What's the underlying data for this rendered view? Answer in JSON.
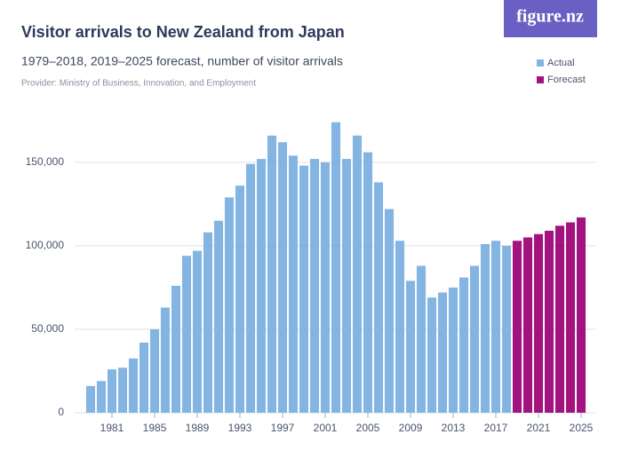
{
  "logo": "figure.nz",
  "chart_data": {
    "type": "bar",
    "title": "Visitor arrivals to New Zealand from Japan",
    "subtitle": "1979–2018, 2019–2025 forecast, number of visitor arrivals",
    "source": "Provider: Ministry of Business, Innovation, and Employment",
    "categories": [
      null,
      null,
      "1981",
      null,
      null,
      null,
      "1985",
      null,
      null,
      null,
      "1989",
      null,
      null,
      null,
      "1993",
      null,
      null,
      null,
      "1997",
      null,
      null,
      null,
      "2001",
      null,
      null,
      null,
      "2005",
      null,
      null,
      null,
      "2009",
      null,
      null,
      null,
      "2013",
      null,
      null,
      null,
      "2017",
      null,
      null,
      null,
      "2021",
      null,
      null,
      null,
      "2025"
    ],
    "series": [
      {
        "name": "Actual",
        "color": "#84b4e2",
        "values": [
          16000,
          19000,
          26000,
          27000,
          32500,
          42000,
          50000,
          63000,
          76000,
          94000,
          97000,
          108000,
          115000,
          129000,
          136000,
          149000,
          152000,
          166000,
          162000,
          154000,
          148000,
          152000,
          150000,
          174000,
          152000,
          166000,
          156000,
          138000,
          122000,
          103000,
          79000,
          88000,
          69000,
          72000,
          75000,
          81000,
          88000,
          101000,
          103000,
          100000,
          null,
          null,
          null,
          null,
          null,
          null,
          null
        ]
      },
      {
        "name": "Forecast",
        "color": "#a3137f",
        "values": [
          null,
          null,
          null,
          null,
          null,
          null,
          null,
          null,
          null,
          null,
          null,
          null,
          null,
          null,
          null,
          null,
          null,
          null,
          null,
          null,
          null,
          null,
          null,
          null,
          null,
          null,
          null,
          null,
          null,
          null,
          null,
          null,
          null,
          null,
          null,
          null,
          null,
          null,
          null,
          null,
          103000,
          105000,
          107000,
          109000,
          112000,
          114000,
          117000
        ]
      }
    ],
    "ylim": [
      0,
      185000
    ],
    "yticks": [
      0,
      {
        "value": 50000,
        "label": "50,000"
      },
      {
        "value": 100000,
        "label": "100,000"
      },
      {
        "value": 150000,
        "label": "150,000"
      }
    ],
    "grid": true,
    "legend": "top-right"
  }
}
